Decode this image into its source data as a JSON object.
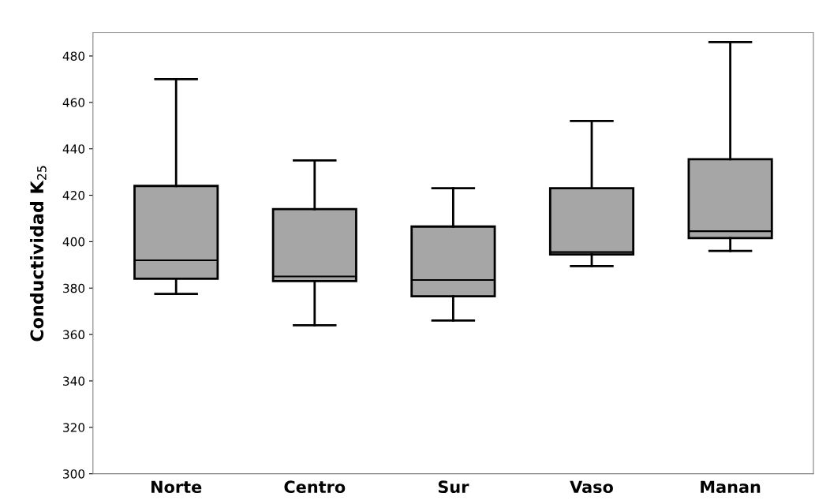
{
  "chart_data": {
    "type": "box",
    "ylabel": "Conductividad K$_{25}$",
    "categories": [
      "Norte",
      "Centro",
      "Sur",
      "Vaso",
      "Manan"
    ],
    "boxes": [
      {
        "low": 377.5,
        "q1": 384,
        "median": 392,
        "q3": 424,
        "high": 470
      },
      {
        "low": 364,
        "q1": 383,
        "median": 385,
        "q3": 414,
        "high": 435
      },
      {
        "low": 366,
        "q1": 376.5,
        "median": 383.5,
        "q3": 406.5,
        "high": 423
      },
      {
        "low": 389.5,
        "q1": 394.5,
        "median": 395.5,
        "q3": 423,
        "high": 452
      },
      {
        "low": 396,
        "q1": 401.5,
        "median": 404.5,
        "q3": 435.5,
        "high": 486
      }
    ],
    "color": "#a6a6a6",
    "ylim": [
      300,
      490
    ],
    "yticks": [
      300,
      320,
      340,
      360,
      380,
      400,
      420,
      440,
      460,
      480
    ],
    "grid": false
  }
}
